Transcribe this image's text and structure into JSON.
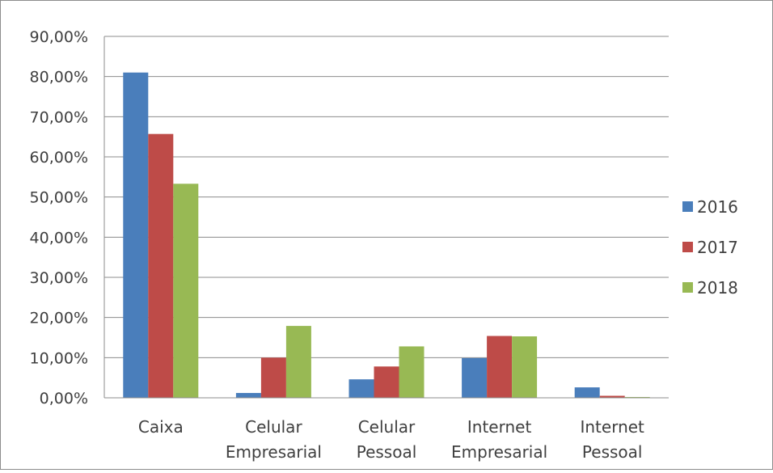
{
  "chart_data": {
    "type": "bar",
    "categories": [
      [
        "Caixa"
      ],
      [
        "Celular",
        "Empresarial"
      ],
      [
        "Celular",
        "Pessoal"
      ],
      [
        "Internet",
        "Empresarial"
      ],
      [
        "Internet",
        "Pessoal"
      ]
    ],
    "series": [
      {
        "name": "2016",
        "color": "#4a7ebb",
        "values": [
          81.0,
          1.2,
          4.6,
          9.9,
          2.6
        ]
      },
      {
        "name": "2017",
        "color": "#be4b48",
        "values": [
          65.7,
          10.0,
          7.8,
          15.4,
          0.5
        ]
      },
      {
        "name": "2018",
        "color": "#98b954",
        "values": [
          53.3,
          17.9,
          12.8,
          15.3,
          0.2
        ]
      }
    ],
    "ylim": [
      0,
      90
    ],
    "yticks": [
      "0,00%",
      "10,00%",
      "20,00%",
      "30,00%",
      "40,00%",
      "50,00%",
      "60,00%",
      "70,00%",
      "80,00%",
      "90,00%"
    ],
    "grid": true,
    "legend_position": "right"
  }
}
